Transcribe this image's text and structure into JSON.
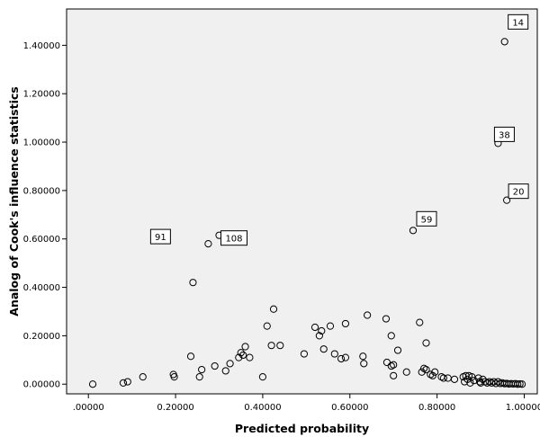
{
  "chart_data": {
    "type": "scatter",
    "xlabel": "Predicted probability",
    "ylabel": "Analog of Cook's influence statistics",
    "xlim": [
      -0.05,
      1.03
    ],
    "ylim": [
      -0.04,
      1.55
    ],
    "x_ticks": [
      0.0,
      0.2,
      0.4,
      0.6,
      0.8,
      1.0
    ],
    "x_tick_labels": [
      ".00000",
      "0.20000",
      "0.40000",
      "0.60000",
      "0.80000",
      "1.00000"
    ],
    "y_ticks": [
      0.0,
      0.2,
      0.4,
      0.6,
      0.8,
      1.0,
      1.2,
      1.4
    ],
    "y_tick_labels": [
      "0.00000",
      "0.20000",
      "0.40000",
      "0.60000",
      "0.80000",
      "1.00000",
      "1.20000",
      "1.40000"
    ],
    "grid": false,
    "plot_background": "#f0f0f0",
    "marker": "open-circle",
    "points": [
      [
        0.01,
        0.0
      ],
      [
        0.08,
        0.005
      ],
      [
        0.09,
        0.01
      ],
      [
        0.125,
        0.03
      ],
      [
        0.195,
        0.04
      ],
      [
        0.197,
        0.03
      ],
      [
        0.235,
        0.115
      ],
      [
        0.24,
        0.42
      ],
      [
        0.255,
        0.03
      ],
      [
        0.26,
        0.06
      ],
      [
        0.275,
        0.58
      ],
      [
        0.29,
        0.075
      ],
      [
        0.3,
        0.615
      ],
      [
        0.315,
        0.055
      ],
      [
        0.325,
        0.085
      ],
      [
        0.345,
        0.11
      ],
      [
        0.35,
        0.13
      ],
      [
        0.355,
        0.12
      ],
      [
        0.36,
        0.155
      ],
      [
        0.37,
        0.11
      ],
      [
        0.4,
        0.03
      ],
      [
        0.41,
        0.24
      ],
      [
        0.42,
        0.16
      ],
      [
        0.425,
        0.31
      ],
      [
        0.44,
        0.16
      ],
      [
        0.495,
        0.125
      ],
      [
        0.52,
        0.235
      ],
      [
        0.53,
        0.2
      ],
      [
        0.535,
        0.22
      ],
      [
        0.54,
        0.145
      ],
      [
        0.555,
        0.24
      ],
      [
        0.565,
        0.125
      ],
      [
        0.58,
        0.105
      ],
      [
        0.59,
        0.25
      ],
      [
        0.59,
        0.11
      ],
      [
        0.63,
        0.115
      ],
      [
        0.632,
        0.085
      ],
      [
        0.64,
        0.285
      ],
      [
        0.683,
        0.27
      ],
      [
        0.685,
        0.09
      ],
      [
        0.695,
        0.2
      ],
      [
        0.695,
        0.075
      ],
      [
        0.7,
        0.08
      ],
      [
        0.7,
        0.035
      ],
      [
        0.71,
        0.14
      ],
      [
        0.73,
        0.05
      ],
      [
        0.745,
        0.635
      ],
      [
        0.76,
        0.255
      ],
      [
        0.765,
        0.05
      ],
      [
        0.77,
        0.065
      ],
      [
        0.775,
        0.17
      ],
      [
        0.775,
        0.06
      ],
      [
        0.785,
        0.04
      ],
      [
        0.79,
        0.035
      ],
      [
        0.795,
        0.05
      ],
      [
        0.81,
        0.03
      ],
      [
        0.815,
        0.025
      ],
      [
        0.825,
        0.025
      ],
      [
        0.84,
        0.02
      ],
      [
        0.86,
        0.03
      ],
      [
        0.863,
        0.01
      ],
      [
        0.866,
        0.035
      ],
      [
        0.87,
        0.02
      ],
      [
        0.873,
        0.035
      ],
      [
        0.876,
        0.005
      ],
      [
        0.88,
        0.03
      ],
      [
        0.885,
        0.015
      ],
      [
        0.895,
        0.025
      ],
      [
        0.898,
        0.01
      ],
      [
        0.9,
        0.005
      ],
      [
        0.905,
        0.02
      ],
      [
        0.91,
        0.01
      ],
      [
        0.915,
        0.005
      ],
      [
        0.92,
        0.01
      ],
      [
        0.925,
        0.005
      ],
      [
        0.93,
        0.01
      ],
      [
        0.935,
        0.003
      ],
      [
        0.94,
        0.01
      ],
      [
        0.945,
        0.003
      ],
      [
        0.95,
        0.005
      ],
      [
        0.955,
        0.002
      ],
      [
        0.96,
        0.003
      ],
      [
        0.965,
        0.001
      ],
      [
        0.97,
        0.002
      ],
      [
        0.975,
        0.001
      ],
      [
        0.98,
        0.002
      ],
      [
        0.985,
        0.0
      ],
      [
        0.99,
        0.001
      ],
      [
        0.995,
        0.0
      ],
      [
        0.94,
        0.995
      ],
      [
        0.955,
        1.415
      ],
      [
        0.96,
        0.76
      ]
    ],
    "annotations": [
      {
        "label": "14",
        "x": 0.955,
        "y": 1.415
      },
      {
        "label": "38",
        "x": 0.94,
        "y": 0.995
      },
      {
        "label": "20",
        "x": 0.96,
        "y": 0.76
      },
      {
        "label": "59",
        "x": 0.745,
        "y": 0.635
      },
      {
        "label": "91",
        "x": 0.275,
        "y": 0.58
      },
      {
        "label": "108",
        "x": 0.3,
        "y": 0.615
      }
    ]
  }
}
